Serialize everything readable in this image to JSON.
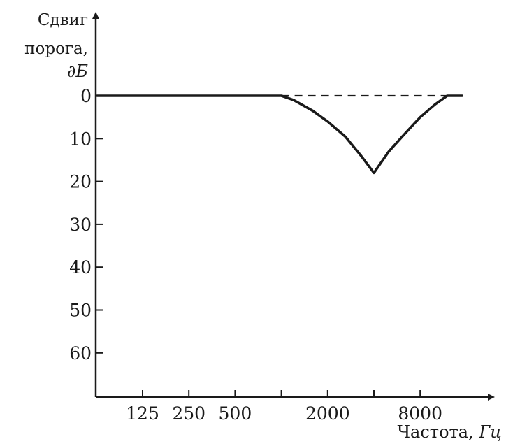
{
  "chart_data": {
    "type": "line",
    "ylabel_lines": [
      "Сдвиг",
      "порога,"
    ],
    "ylabel_unit": "∂Б",
    "xlabel_text": "Частота, ",
    "xlabel_unit": "Гц",
    "y_inverted": true,
    "ylim": [
      0,
      70
    ],
    "yticks": [
      0,
      10,
      20,
      30,
      40,
      50,
      60
    ],
    "x_scale": "log2-octave",
    "xlim_octave": [
      -0.5,
      8.6
    ],
    "xticks": [
      {
        "value": 125,
        "label": "125",
        "octave": 1
      },
      {
        "value": 250,
        "label": "250",
        "octave": 2
      },
      {
        "value": 500,
        "label": "500",
        "octave": 3
      },
      {
        "value": 1000,
        "label": "",
        "octave": 4
      },
      {
        "value": 2000,
        "label": "2000",
        "octave": 5
      },
      {
        "value": 4000,
        "label": "",
        "octave": 6
      },
      {
        "value": 8000,
        "label": "8000",
        "octave": 7
      }
    ],
    "series": [
      {
        "style": "solid",
        "color": "#1a1a1a",
        "points": [
          {
            "x": 44,
            "y": 0
          },
          {
            "x": 1000,
            "y": 0
          },
          {
            "x": 1200,
            "y": 1
          },
          {
            "x": 1600,
            "y": 3.5
          },
          {
            "x": 2000,
            "y": 6
          },
          {
            "x": 2600,
            "y": 9.5
          },
          {
            "x": 3300,
            "y": 14
          },
          {
            "x": 4000,
            "y": 18
          },
          {
            "x": 5000,
            "y": 13
          },
          {
            "x": 6300,
            "y": 9
          },
          {
            "x": 8000,
            "y": 5
          },
          {
            "x": 10000,
            "y": 2
          },
          {
            "x": 12000,
            "y": 0
          },
          {
            "x": 15000,
            "y": 0
          }
        ]
      },
      {
        "style": "dashed",
        "color": "#1a1a1a",
        "points": [
          {
            "x": 1000,
            "y": 0
          },
          {
            "x": 12000,
            "y": 0
          }
        ]
      }
    ]
  }
}
